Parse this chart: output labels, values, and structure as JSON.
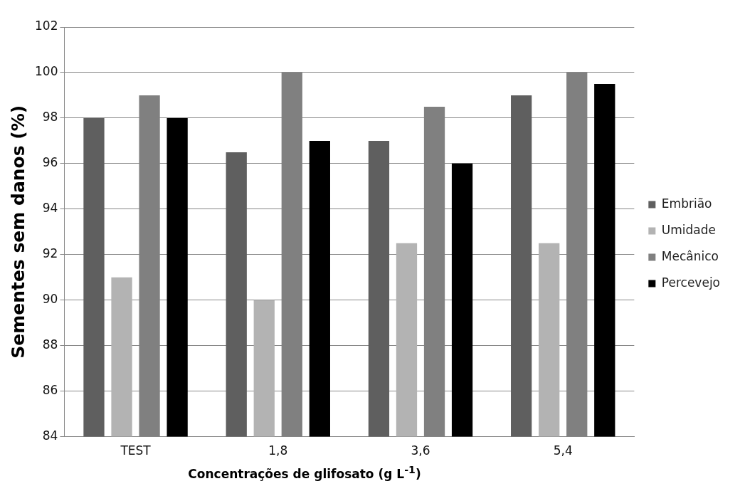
{
  "chart_data": {
    "type": "bar",
    "xlabel": "Concentrações de glifosato (g L$^{-1}$)",
    "ylabel": "Sementes sem danos (%)",
    "categories": [
      "TEST",
      "1,8",
      "3,6",
      "5,4"
    ],
    "series": [
      {
        "name": "Embrião",
        "color": "#5f5f5f",
        "values": [
          98,
          96.5,
          97,
          99
        ]
      },
      {
        "name": "Umidade",
        "color": "#b3b3b3",
        "values": [
          91,
          90,
          92.5,
          92.5
        ]
      },
      {
        "name": "Mecânico",
        "color": "#808080",
        "values": [
          99,
          100,
          98.5,
          100
        ]
      },
      {
        "name": "Percevejo",
        "color": "#000000",
        "values": [
          98,
          97,
          96,
          99.5
        ]
      }
    ],
    "ylim": [
      84,
      102
    ],
    "yticks": [
      84,
      86,
      88,
      90,
      92,
      94,
      96,
      98,
      100,
      102
    ],
    "grid": "y",
    "legend": "right"
  }
}
